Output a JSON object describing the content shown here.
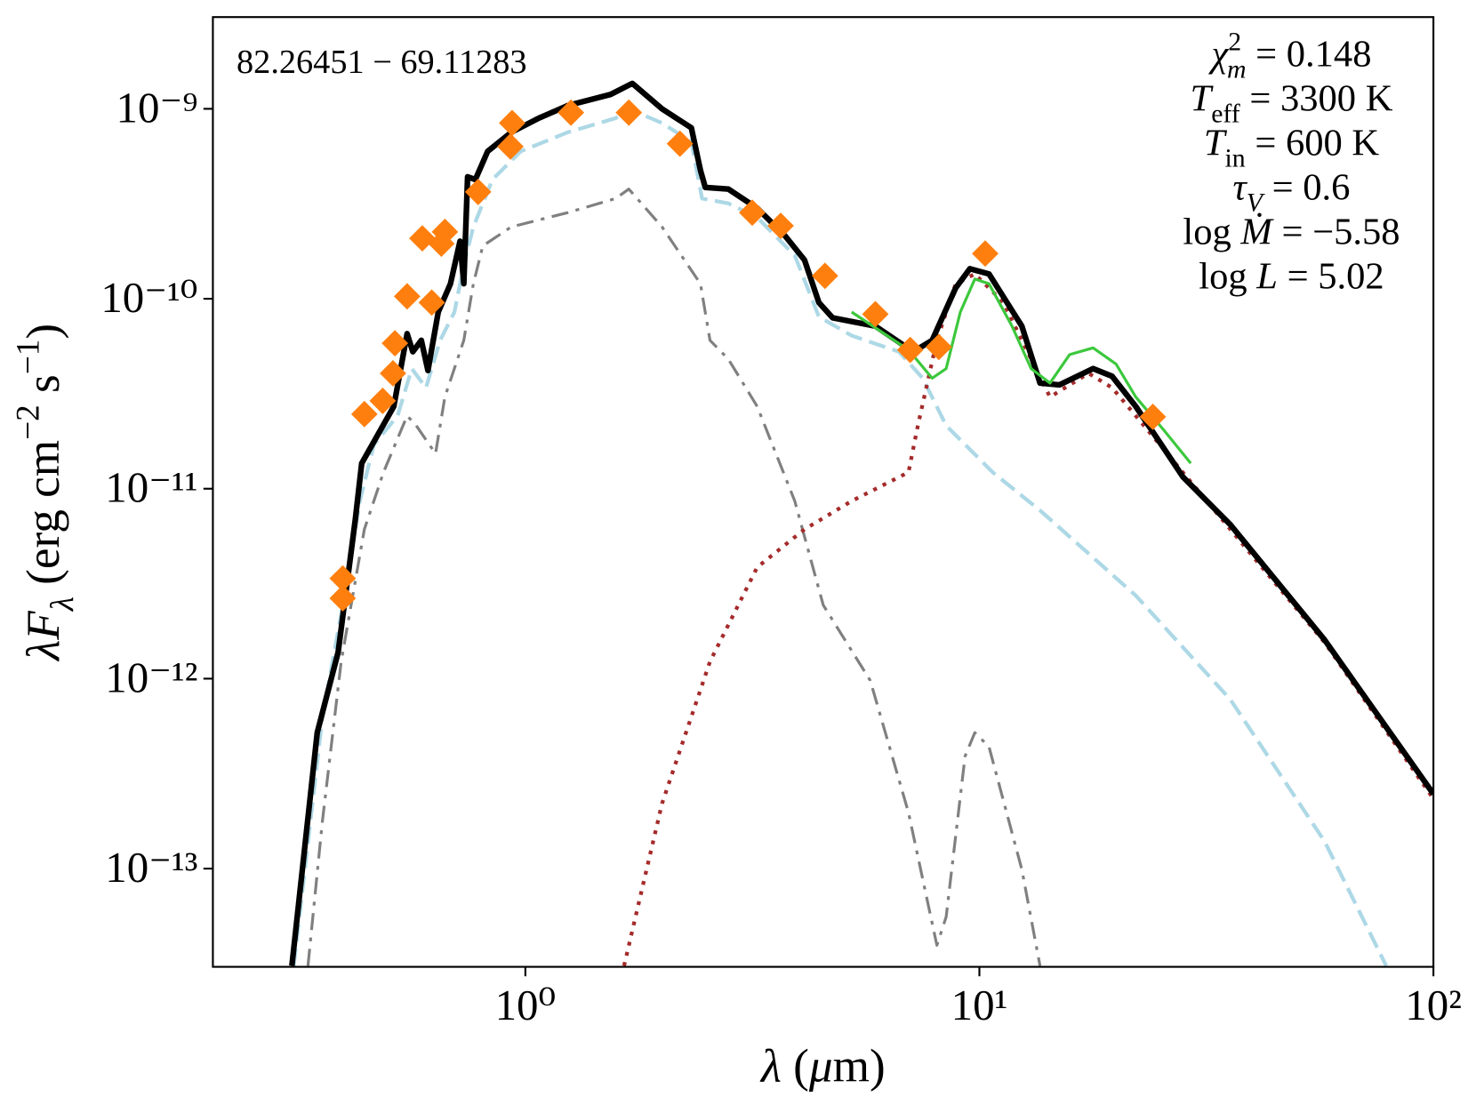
{
  "chart_data": {
    "type": "line",
    "xscale": "log",
    "yscale": "log",
    "xlim": [
      0.205,
      100
    ],
    "ylim": [
      3.04e-14,
      3.04e-09
    ],
    "xticks": [
      {
        "value": 1,
        "label": "10⁰"
      },
      {
        "value": 10,
        "label": "10¹"
      },
      {
        "value": 100,
        "label": "10²"
      }
    ],
    "yticks": [
      {
        "value": 1e-13,
        "label": "10⁻¹³"
      },
      {
        "value": 1e-12,
        "label": "10⁻¹²"
      },
      {
        "value": 1e-11,
        "label": "10⁻¹¹"
      },
      {
        "value": 1e-10,
        "label": "10⁻¹⁰"
      },
      {
        "value": 1e-09,
        "label": "10⁻⁹"
      }
    ],
    "x_label": [
      {
        "text": "λ",
        "italic": true
      },
      {
        "text": " ("
      },
      {
        "text": "μ",
        "italic": true
      },
      {
        "text": "m)"
      }
    ],
    "y_label": [
      {
        "text": "λF",
        "italic": true
      },
      {
        "text": "λ",
        "italic": true,
        "shift": "sub"
      },
      {
        "text": " (erg cm"
      },
      {
        "text": "−2",
        "shift": "sup"
      },
      {
        "text": " s"
      },
      {
        "text": "−1",
        "shift": "sup"
      },
      {
        "text": ")"
      }
    ],
    "annotation": "82.26451 − 69.11283",
    "parameters": [
      [
        {
          "text": "χ",
          "italic": true
        },
        {
          "text": "2",
          "shift": "sup"
        },
        {
          "text": "m",
          "italic": true,
          "shift": "sub"
        },
        {
          "text": " = 0.148"
        }
      ],
      [
        {
          "text": "T",
          "italic": true
        },
        {
          "text": "eff",
          "shift": "sub"
        },
        {
          "text": " = 3300 K"
        }
      ],
      [
        {
          "text": "T",
          "italic": true
        },
        {
          "text": "in",
          "shift": "sub"
        },
        {
          "text": " = 600 K"
        }
      ],
      [
        {
          "text": "τ",
          "italic": true
        },
        {
          "text": "V",
          "italic": true,
          "shift": "sub"
        },
        {
          "text": " = 0.6"
        }
      ],
      [
        {
          "text": "log "
        },
        {
          "text": "Ṁ",
          "italic": true
        },
        {
          "text": " = −5.58"
        }
      ],
      [
        {
          "text": "log "
        },
        {
          "text": "L",
          "italic": true
        },
        {
          "text": " = 5.02"
        }
      ]
    ],
    "series": [
      {
        "color": "#add8e6",
        "linestyle": "dashed",
        "linewidth": 4,
        "x": [
          0.309,
          0.357,
          0.393,
          0.432,
          0.464,
          0.523,
          0.562,
          0.604,
          0.649,
          0.698,
          0.732,
          0.768,
          0.846,
          0.977,
          1.24,
          1.58,
          1.69,
          2.0,
          2.32,
          2.45,
          2.8,
          3.24,
          3.92,
          4.43,
          5.23,
          6.65,
          7.5,
          8.45,
          10.7,
          13.6,
          22.1,
          35.7,
          57.6,
          78.7
        ],
        "values": [
          3.08e-14,
          6.18e-13,
          2.18e-12,
          8.61e-12,
          1.71e-11,
          2.42e-11,
          4.29e-11,
          3.4e-11,
          6.04e-11,
          8.51e-11,
          1.51e-10,
          2.39e-10,
          4.24e-10,
          5.97e-10,
          7.52e-10,
          8.92e-10,
          1e-09,
          8.42e-10,
          6.7e-10,
          3.37e-10,
          3.18e-10,
          2.68e-10,
          1.69e-10,
          8.04e-11,
          6.4e-11,
          5.26e-11,
          3.82e-11,
          2.15e-11,
          1.22e-11,
          7.69e-12,
          2.74e-12,
          7.78e-13,
          1.39e-13,
          3.08e-14
        ]
      },
      {
        "color": "#808080",
        "linestyle": "dashdot",
        "linewidth": 3,
        "x": [
          0.332,
          0.357,
          0.393,
          0.442,
          0.487,
          0.549,
          0.575,
          0.634,
          0.665,
          0.732,
          0.768,
          0.806,
          0.931,
          1.24,
          1.58,
          1.69,
          2.0,
          2.43,
          2.55,
          2.8,
          3.24,
          3.92,
          4.53,
          5.75,
          6.98,
          8.06,
          8.45,
          9.3,
          9.77,
          10.5,
          12.4,
          13.6
        ],
        "values": [
          3.08e-14,
          1.75e-13,
          1.23e-12,
          6.11e-12,
          1.22e-11,
          2.42e-11,
          2.15e-11,
          1.53e-11,
          3.04e-11,
          6.04e-11,
          1.2e-10,
          1.9e-10,
          2.39e-10,
          2.84e-10,
          3.37e-10,
          3.78e-10,
          2.39e-10,
          1.2e-10,
          6.04e-11,
          4.81e-11,
          2.71e-11,
          8.61e-12,
          2.44e-12,
          9.77e-13,
          1.97e-13,
          3.95e-14,
          5.57e-14,
          3.91e-13,
          5.2e-13,
          4.38e-13,
          9.89e-14,
          3.08e-14
        ]
      },
      {
        "color": "#a52a2a",
        "linestyle": "dotted",
        "linewidth": 4,
        "x": [
          1.65,
          2.0,
          2.55,
          3.24,
          4.12,
          5.23,
          6.98,
          7.32,
          8.06,
          8.87,
          9.77,
          11.3,
          13.0,
          14.3,
          17.4,
          19.6,
          22.1,
          35.7,
          57.6,
          100
        ],
        "values": [
          3.08e-14,
          2.2e-13,
          1.23e-12,
          3.86e-12,
          6.11e-12,
          8.61e-12,
          1.22e-11,
          2.15e-11,
          6.04e-11,
          1.2e-10,
          1.35e-10,
          9.55e-11,
          4.81e-11,
          3.04e-11,
          4.05e-11,
          3.4e-11,
          2.42e-11,
          6.11e-12,
          1.55e-12,
          2.33e-13
        ]
      },
      {
        "color": "#000000",
        "linestyle": "solid",
        "linewidth": 6,
        "x": [
          0.306,
          0.348,
          0.387,
          0.422,
          0.436,
          0.513,
          0.549,
          0.565,
          0.59,
          0.61,
          0.643,
          0.684,
          0.718,
          0.732,
          0.746,
          0.776,
          0.826,
          0.931,
          1.07,
          1.24,
          1.54,
          1.72,
          2.0,
          2.32,
          2.43,
          2.49,
          2.8,
          3.24,
          3.74,
          4.12,
          4.43,
          4.75,
          5.9,
          7.15,
          7.87,
          8.87,
          9.53,
          10.5,
          12.4,
          13.6,
          15.0,
          17.8,
          19.6,
          22.1,
          28.1,
          35.7,
          57.6,
          100
        ],
        "values": [
          3.08e-14,
          5.2e-13,
          1.38e-12,
          6.86e-12,
          1.36e-11,
          2.71e-11,
          6.55e-11,
          5.26e-11,
          6.04e-11,
          4.19e-11,
          8.51e-11,
          1.2e-10,
          2.01e-10,
          1.2e-10,
          4.39e-10,
          4.24e-10,
          5.97e-10,
          7.52e-10,
          8.92e-10,
          1.04e-09,
          1.19e-09,
          1.36e-09,
          1e-09,
          7.94e-10,
          4.75e-10,
          3.86e-10,
          3.78e-10,
          3e-10,
          2.13e-10,
          1.6e-10,
          9.55e-11,
          7.94e-11,
          7.18e-11,
          5.26e-11,
          6.04e-11,
          1.14e-10,
          1.44e-10,
          1.35e-10,
          7.18e-11,
          3.6e-11,
          3.52e-11,
          4.29e-11,
          3.91e-11,
          2.71e-11,
          1.15e-11,
          6.47e-12,
          1.6e-12,
          2.47e-13
        ]
      },
      {
        "color": "#3cc83c",
        "linestyle": "solid",
        "linewidth": 3,
        "x": [
          5.23,
          6.04,
          6.98,
          7.87,
          8.45,
          9.08,
          9.77,
          10.5,
          11.8,
          13.0,
          14.3,
          15.8,
          17.8,
          20.0,
          22.1,
          25.5,
          29.2
        ],
        "values": [
          8.51e-11,
          6.78e-11,
          5.38e-11,
          3.82e-11,
          4.29e-11,
          8.51e-11,
          1.27e-10,
          1.2e-10,
          7.18e-11,
          4.29e-11,
          3.6e-11,
          5.08e-11,
          5.51e-11,
          4.53e-11,
          3.04e-11,
          2.03e-11,
          1.36e-11
        ]
      },
      {
        "color": "#ff7f0e",
        "linestyle": "none",
        "marker": "diamond",
        "x": [
          0.396,
          0.396,
          0.442,
          0.485,
          0.511,
          0.516,
          0.549,
          0.593,
          0.622,
          0.653,
          0.665,
          0.787,
          0.927,
          0.935,
          1.26,
          1.69,
          2.19,
          3.16,
          3.65,
          4.57,
          5.9,
          7.04,
          8.14,
          10.3,
          24.1
        ],
        "values": [
          3.37e-12,
          2.65e-12,
          2.47e-11,
          2.9e-11,
          4.05e-11,
          5.83e-11,
          1.03e-10,
          2.08e-10,
          9.55e-11,
          1.95e-10,
          2.25e-10,
          3.65e-10,
          6.33e-10,
          8.42e-10,
          9.55e-10,
          9.55e-10,
          6.55e-10,
          2.84e-10,
          2.42e-10,
          1.32e-10,
          8.3e-11,
          5.38e-11,
          5.57e-11,
          1.73e-10,
          2.39e-11
        ]
      }
    ]
  }
}
